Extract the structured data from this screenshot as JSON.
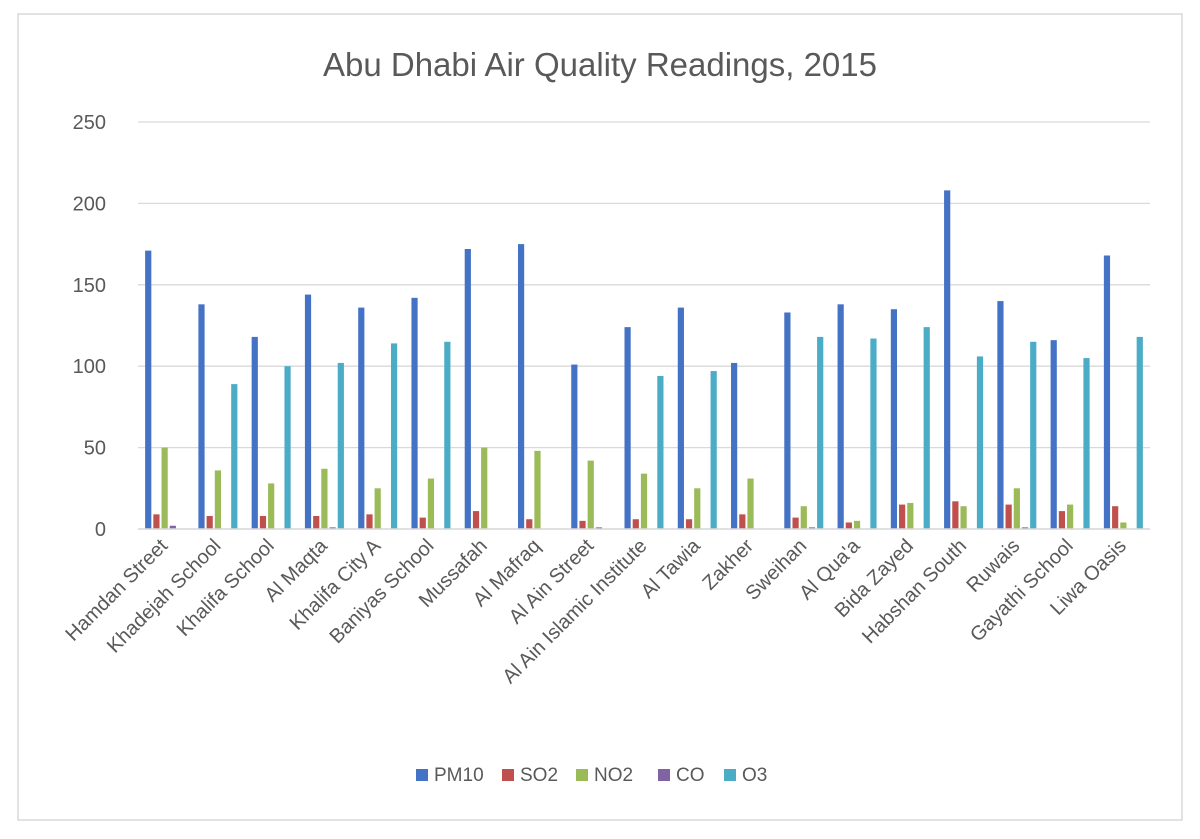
{
  "chart_data": {
    "type": "bar",
    "title": "Abu Dhabi Air Quality Readings, 2015",
    "xlabel": "",
    "ylabel": "",
    "ylim": [
      0,
      250
    ],
    "yticks": [
      0,
      50,
      100,
      150,
      200,
      250
    ],
    "grid": true,
    "legend_position": "bottom",
    "categories": [
      "Hamdan Street",
      "Khadejah School",
      "Khalifa School",
      "Al Maqta",
      "Khalifa City A",
      "Baniyas School",
      "Mussafah",
      "Al Mafraq",
      "Al Ain Street",
      "Al Ain Islamic Institute",
      "Al Tawia",
      "Zakher",
      "Sweihan",
      "Al Qua'a",
      "Bida Zayed",
      "Habshan South",
      "Ruwais",
      "Gayathi School",
      "Liwa Oasis"
    ],
    "series": [
      {
        "name": "PM10",
        "color": "#4472C4",
        "values": [
          171,
          138,
          118,
          144,
          136,
          142,
          172,
          175,
          101,
          124,
          136,
          102,
          133,
          138,
          135,
          208,
          140,
          116,
          168
        ]
      },
      {
        "name": "SO2",
        "color": "#C0504D",
        "values": [
          9,
          8,
          8,
          8,
          9,
          7,
          11,
          6,
          5,
          6,
          6,
          9,
          7,
          4,
          15,
          17,
          15,
          11,
          14
        ]
      },
      {
        "name": "NO2",
        "color": "#9BBB59",
        "values": [
          50,
          36,
          28,
          37,
          25,
          31,
          50,
          48,
          42,
          34,
          25,
          31,
          14,
          5,
          16,
          14,
          25,
          15,
          4
        ]
      },
      {
        "name": "CO",
        "color": "#8064A2",
        "values": [
          2,
          0,
          0,
          1,
          0,
          0,
          0,
          0,
          1,
          0,
          0,
          0,
          1,
          0,
          0,
          0,
          1,
          0,
          0
        ]
      },
      {
        "name": "O3",
        "color": "#4BACC6",
        "values": [
          0,
          89,
          100,
          102,
          114,
          115,
          0,
          0,
          0,
          94,
          97,
          0,
          118,
          117,
          124,
          106,
          115,
          105,
          118
        ]
      }
    ]
  }
}
